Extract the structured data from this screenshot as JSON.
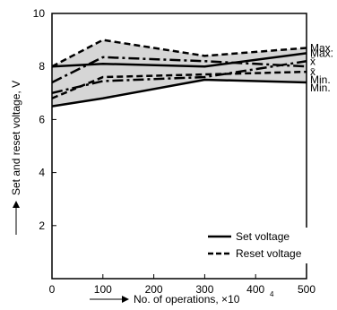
{
  "chart_data": {
    "type": "line",
    "xlabel": "No. of operations, ×10",
    "xlabel_exponent": "4",
    "ylabel": "Set and reset voltage, V",
    "xlim": [
      0,
      500
    ],
    "ylim": [
      0,
      10
    ],
    "x_ticks": [
      0,
      100,
      200,
      300,
      400,
      500
    ],
    "y_ticks": [
      2,
      4,
      6,
      8,
      10
    ],
    "grid": false,
    "legend_position": "bottom-right",
    "legend": [
      {
        "label": "Set voltage",
        "style": "solid"
      },
      {
        "label": "Reset voltage",
        "style": "dashed"
      }
    ],
    "bands": [
      {
        "name": "set-range",
        "x": [
          0,
          100,
          300,
          500
        ],
        "low": [
          6.5,
          6.8,
          7.5,
          7.4
        ],
        "high": [
          8.0,
          8.1,
          8.0,
          8.5
        ],
        "fill": "#d6d6d6"
      },
      {
        "name": "reset-range",
        "x": [
          0,
          100,
          300,
          500
        ],
        "low": [
          6.8,
          7.6,
          7.7,
          7.8
        ],
        "high": [
          8.0,
          9.0,
          8.4,
          8.7
        ],
        "fill": "#d6d6d6"
      }
    ],
    "series": [
      {
        "group": "set",
        "style": "solid",
        "x": [
          0,
          100,
          300,
          500
        ],
        "values": [
          8.0,
          8.1,
          8.0,
          8.5
        ]
      },
      {
        "group": "set",
        "style": "dashdot",
        "x": [
          0,
          100,
          300,
          500
        ],
        "values": [
          7.4,
          8.35,
          8.2,
          8.0
        ]
      },
      {
        "group": "set",
        "style": "dashdot",
        "x": [
          0,
          100,
          300,
          500
        ],
        "values": [
          7.0,
          7.45,
          7.6,
          8.2
        ]
      },
      {
        "group": "set",
        "style": "solid",
        "x": [
          0,
          100,
          300,
          500
        ],
        "values": [
          6.5,
          6.8,
          7.5,
          7.4
        ]
      },
      {
        "group": "reset",
        "style": "dashed",
        "x": [
          0,
          100,
          300,
          500
        ],
        "values": [
          8.0,
          9.0,
          8.4,
          8.7
        ]
      },
      {
        "group": "reset",
        "style": "dashed",
        "x": [
          0,
          100,
          300,
          500
        ],
        "values": [
          6.8,
          7.6,
          7.7,
          7.8
        ]
      }
    ],
    "end_labels": [
      {
        "text": "Max.",
        "value": 8.7
      },
      {
        "text": "Max.",
        "value": 8.5
      },
      {
        "text": "x̄",
        "value": 8.2
      },
      {
        "text": "x̄",
        "value": 7.8
      },
      {
        "text": "Min.",
        "value": 7.5
      },
      {
        "text": "Min.",
        "value": 7.2
      }
    ],
    "colors": {
      "line": "#000000",
      "band": "#d6d6d6",
      "background": "#ffffff"
    }
  }
}
